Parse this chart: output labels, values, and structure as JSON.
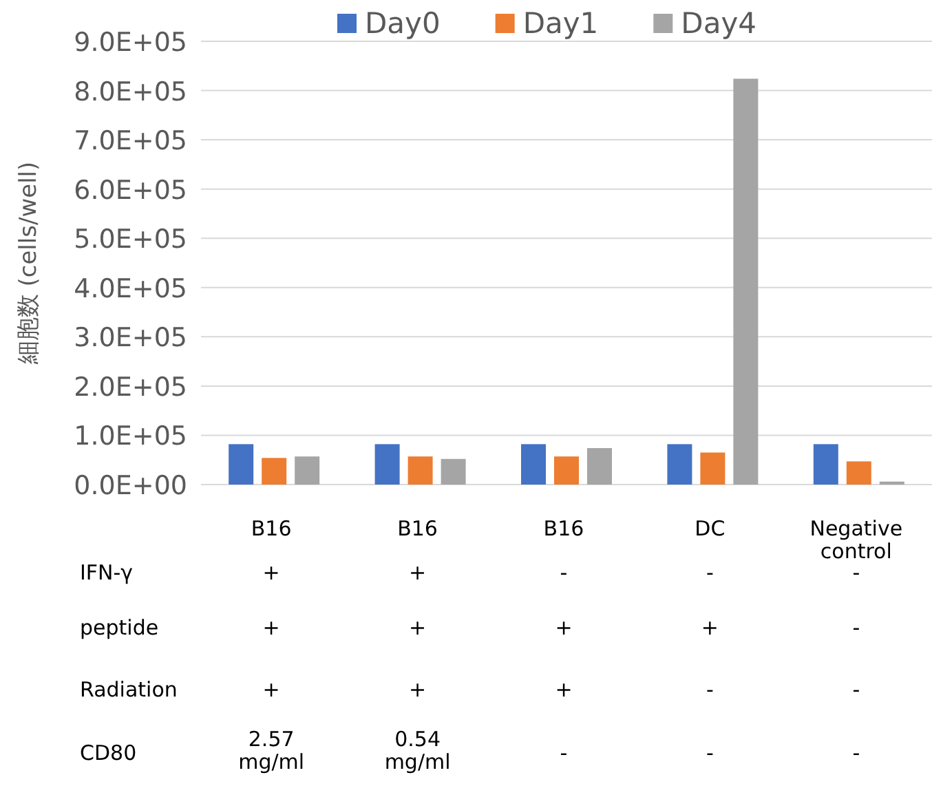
{
  "chart_data": {
    "type": "bar",
    "ylabel": "細胞数 (cells/well)",
    "categories": [
      "B16",
      "B16",
      "B16",
      "DC",
      "Negative control"
    ],
    "series": [
      {
        "name": "Day0",
        "color": "#4472c4",
        "values": [
          82000,
          82000,
          82000,
          82000,
          82000
        ]
      },
      {
        "name": "Day1",
        "color": "#ed7d31",
        "values": [
          54000,
          57000,
          57000,
          65000,
          47000
        ]
      },
      {
        "name": "Day4",
        "color": "#a5a5a5",
        "values": [
          57000,
          52000,
          74000,
          824000,
          6000
        ]
      }
    ],
    "ylim": [
      0,
      900000
    ],
    "yticks": [
      {
        "value": 0,
        "label": "0.0E+00"
      },
      {
        "value": 100000,
        "label": "1.0E+05"
      },
      {
        "value": 200000,
        "label": "2.0E+05"
      },
      {
        "value": 300000,
        "label": "3.0E+05"
      },
      {
        "value": 400000,
        "label": "4.0E+05"
      },
      {
        "value": 500000,
        "label": "5.0E+05"
      },
      {
        "value": 600000,
        "label": "6.0E+05"
      },
      {
        "value": 700000,
        "label": "7.0E+05"
      },
      {
        "value": 800000,
        "label": "8.0E+05"
      },
      {
        "value": 900000,
        "label": "9.0E+05"
      }
    ],
    "grid": "y",
    "legend": "top",
    "annotations": [
      "IFN-γ",
      "+",
      "+",
      "-",
      "-",
      "-",
      "peptide",
      "+",
      "+",
      "+",
      "+",
      "-",
      "Radiation",
      "+",
      "+",
      "+",
      "-",
      "-",
      "CD80",
      "2.57 mg/ml",
      "0.54 mg/ml",
      "-",
      "-",
      "-"
    ]
  }
}
